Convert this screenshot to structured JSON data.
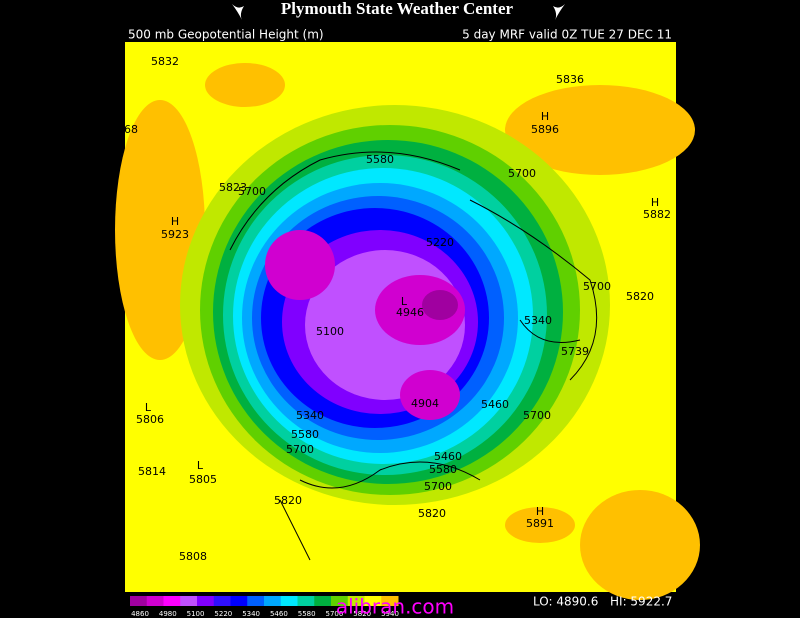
{
  "header": {
    "title": "Plymouth State Weather Center",
    "subtitle": "500 mb Geopotential Height (m)",
    "valid": "5 day MRF valid 0Z TUE 27 DEC 11"
  },
  "map_labels": [
    "5832",
    "5836",
    "H",
    "5896",
    "68",
    "5580",
    "5700",
    "5823",
    "5700",
    "H",
    "5923",
    "H",
    "5882",
    "L",
    "4946",
    "5820",
    "5700",
    "5340",
    "5739",
    "5460",
    "5700",
    "4904",
    "5340",
    "5580",
    "5700",
    "5460",
    "5580",
    "5700",
    "L",
    "5806",
    "5814",
    "L",
    "5805",
    "5820",
    "5820",
    "H",
    "5891",
    "5808",
    "5220",
    "5100"
  ],
  "colorbar": {
    "ticks": [
      4860,
      4980,
      5100,
      5220,
      5340,
      5460,
      5580,
      5700,
      5820,
      5940
    ],
    "colors": [
      "#a000a0",
      "#d000d0",
      "#ff00ff",
      "#c050ff",
      "#8000ff",
      "#3010ff",
      "#0000ff",
      "#0060ff",
      "#00a8ff",
      "#00e8ff",
      "#00d0a0",
      "#00b040",
      "#60d000",
      "#c0e800",
      "#ffff00",
      "#ffc000"
    ]
  },
  "footer": {
    "lo": "LO: 4890.6",
    "hi": "HI: 5922.7",
    "watermark": "alibran.com"
  }
}
